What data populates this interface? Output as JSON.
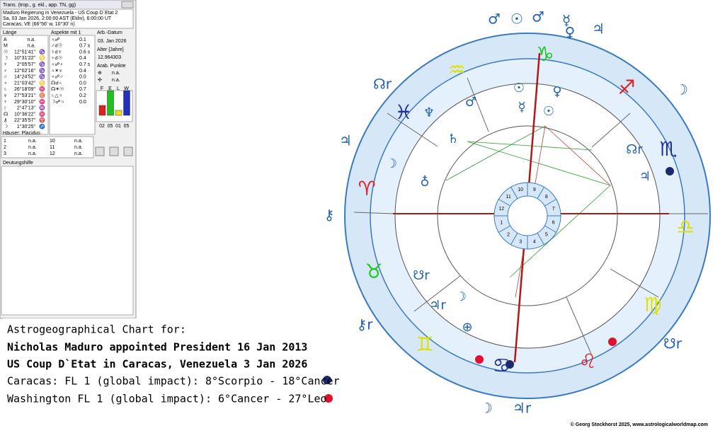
{
  "panel": {
    "title": "Trans. (trop., g. ekl., app. TN, gg)",
    "info": [
      "Maduro Regierung in Venezuela - US Coup D`Etat 2",
      "Sa, 03 Jan 2026, 2:00:00 AST (Ekliv), 6:00:00 UT",
      "Caracas, VE (66°56' w, 10°30' n)"
    ],
    "col_length": "Länge",
    "col_aspects": "Aspekte mit 1",
    "work_date_label": "Arb.-Datum",
    "work_date": "03. Jan 2026",
    "age_label": "Alter [Jahre]",
    "age": "12.964303",
    "arab_label": "Arab. Punkte",
    "arab_rows": [
      [
        "⊕",
        "n.a."
      ],
      [
        "✣",
        "n.a."
      ]
    ],
    "positions": [
      [
        "A",
        "n.a.",
        ""
      ],
      [
        "M",
        "n.a.",
        ""
      ],
      [
        "☉",
        "12°51'41\"",
        "♑"
      ],
      [
        "☽",
        "10°31'22\"",
        "♋"
      ],
      [
        "☿",
        "2°05'57\"",
        "♑"
      ],
      [
        "♀",
        "12°02'16\"",
        "♑"
      ],
      [
        "♂",
        "14°24'52\"",
        "♑"
      ],
      [
        "♃",
        "21°03'42\"",
        "♋"
      ],
      [
        "♄",
        "26°18'09\"",
        "♓"
      ],
      [
        "♅",
        "27°53'21\"",
        "♉"
      ],
      [
        "♆",
        "29°30'10\"",
        "♓"
      ],
      [
        "♇",
        "2°47'13\"",
        "♒"
      ],
      [
        "☊",
        "10°36'22\"",
        "♓"
      ],
      [
        "⚷",
        "22°35'57\"",
        "♈"
      ],
      [
        "☽",
        "1°30'25\"",
        "♐"
      ]
    ],
    "aspects": [
      [
        "♃☍",
        "0.1"
      ],
      [
        "♂☌☉",
        "0.7 s"
      ],
      [
        "☿☌♅",
        "0.6 s"
      ],
      [
        "♀☌☉",
        "0.4"
      ],
      [
        "♃☍♀",
        "0.7 s"
      ],
      [
        "♃✶♅",
        "0.4"
      ],
      [
        "♃☍♂",
        "0.0"
      ],
      [
        "☊☌♄",
        "0.0"
      ],
      [
        "☊✶☉",
        "0.7"
      ],
      [
        "♄△♃",
        "0.2"
      ],
      [
        "☽☍♃",
        "0.0"
      ]
    ],
    "elements": {
      "type": "bar",
      "categories": [
        "F",
        "E",
        "L",
        "W"
      ],
      "values": [
        2,
        5,
        1,
        5
      ],
      "value_labels": [
        "02",
        "05",
        "01",
        "05"
      ],
      "colors": [
        "#e02020",
        "#20c020",
        "#f0e020",
        "#2030c0"
      ]
    },
    "houses_label": "Häuser: Placidus",
    "houses": [
      [
        "1",
        "n.a.",
        "10",
        "n.a."
      ],
      [
        "2",
        "n.a.",
        "11",
        "n.a."
      ],
      [
        "3",
        "n.a.",
        "12",
        "n.a."
      ]
    ],
    "help_label": "Deutungshilfe"
  },
  "caption": {
    "heading": "Astrogeographical Chart for:",
    "line1": "Nicholas Maduro appointed President 16 Jan 2013",
    "line2": "US Coup D`Etat in Caracas, Venezuela 3 Jan 2026",
    "line3": "Caracas: FL 1 (global impact): 8°Scorpio - 18°Cancer",
    "line4": "Washington FL 1 (global impact):  6°Cancer - 27°Leo"
  },
  "wheel": {
    "signs": [
      "♑",
      "♒",
      "♓",
      "♈",
      "♉",
      "♊",
      "♋",
      "♌",
      "♍",
      "♎",
      "♏",
      "♐"
    ],
    "sign_colors": [
      "#18c818",
      "#e0e000",
      "#2030a0",
      "#e02020",
      "#18c818",
      "#e0e000",
      "#2030a0",
      "#e02020",
      "#e0e000",
      "#e0e000",
      "#2030a0",
      "#e02020"
    ],
    "outer_planets": [
      "♂",
      "☉",
      "♂",
      "☿",
      "♀",
      "♃",
      "☊r",
      "♃",
      "⚷",
      "⚷r",
      "☽",
      "☽",
      "♃r",
      "☋r"
    ],
    "inner_planets": [
      "☉",
      "♂",
      "♀",
      "☿",
      "♆",
      "♄",
      "☉",
      "☽",
      "♁",
      "☊r",
      "♃",
      "☋r",
      "♃r",
      "☽",
      "⊕"
    ],
    "house_numbers": [
      "1",
      "2",
      "3",
      "4",
      "5",
      "6",
      "7",
      "8",
      "9",
      "10",
      "11",
      "12"
    ]
  },
  "copyright": "© Georg Stockhorst 2025, www.astrologicalworldmap.com"
}
